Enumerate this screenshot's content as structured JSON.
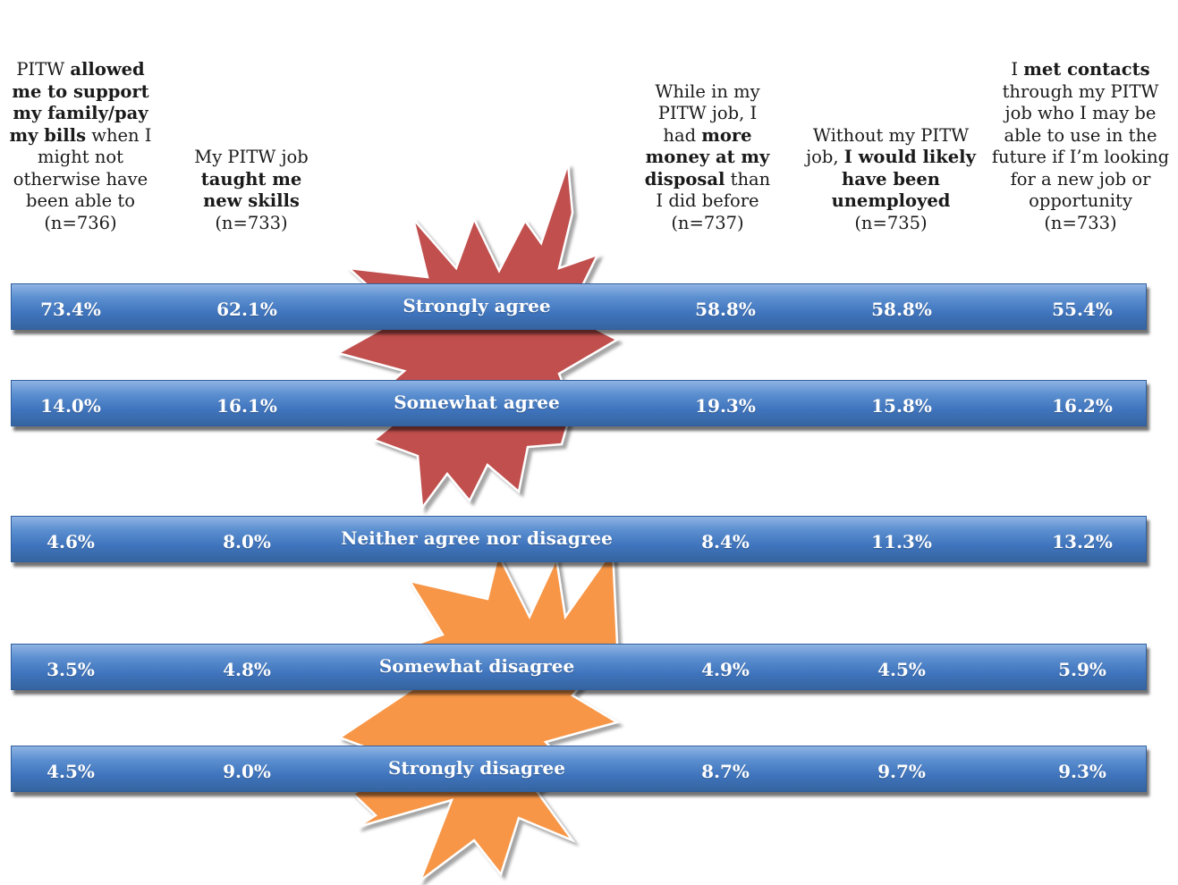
{
  "chart_data": {
    "type": "table",
    "columns": [
      {
        "parts": [
          {
            "text": "PITW ",
            "bold": false
          },
          {
            "text": "allowed me to support my family/pay my bills",
            "bold": true
          },
          {
            "text": " when I might not otherwise have been able to",
            "bold": false
          }
        ],
        "n": "(n=736)"
      },
      {
        "parts": [
          {
            "text": "My PITW job ",
            "bold": false
          },
          {
            "text": "taught me new skills",
            "bold": true
          }
        ],
        "n": "(n=733)"
      },
      {
        "parts": [
          {
            "text": "While in my PITW job, I had ",
            "bold": false
          },
          {
            "text": "more money at my disposal",
            "bold": true
          },
          {
            "text": " than I did before",
            "bold": false
          }
        ],
        "n": "(n=737)"
      },
      {
        "parts": [
          {
            "text": "Without my PITW job, ",
            "bold": false
          },
          {
            "text": "I would likely have been unemployed",
            "bold": true
          }
        ],
        "n": "(n=735)"
      },
      {
        "parts": [
          {
            "text": "I ",
            "bold": false
          },
          {
            "text": "met contacts",
            "bold": true
          },
          {
            "text": " through my PITW job who I may be able to use in the future if I’m looking for a new job or opportunity",
            "bold": false
          }
        ],
        "n": "(n=733)"
      }
    ],
    "rows": [
      {
        "label": "Strongly agree",
        "values": [
          "73.4%",
          "62.1%",
          "58.8%",
          "58.8%",
          "55.4%"
        ]
      },
      {
        "label": "Somewhat agree",
        "values": [
          "14.0%",
          "16.1%",
          "19.3%",
          "15.8%",
          "16.2%"
        ]
      },
      {
        "label": "Neither agree nor disagree",
        "values": [
          "4.6%",
          "8.0%",
          "8.4%",
          "11.3%",
          "13.2%"
        ]
      },
      {
        "label": "Somewhat disagree",
        "values": [
          "3.5%",
          "4.8%",
          "4.9%",
          "4.5%",
          "5.9%"
        ]
      },
      {
        "label": "Strongly disagree",
        "values": [
          "4.5%",
          "9.0%",
          "8.7%",
          "9.7%",
          "9.3%"
        ]
      }
    ],
    "colors": {
      "band": "#4a7fc4",
      "agree_burst": "#c0504d",
      "disagree_burst": "#f79646",
      "text_on_band": "#ffffff"
    }
  }
}
